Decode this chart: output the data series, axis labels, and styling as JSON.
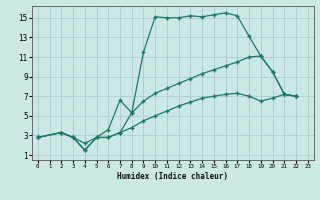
{
  "xlabel": "Humidex (Indice chaleur)",
  "bg_color": "#cce8e4",
  "grid_color": "#aacece",
  "line_color": "#1a7a6a",
  "xlim": [
    -0.5,
    23.5
  ],
  "ylim": [
    0.5,
    16.2
  ],
  "xticks": [
    0,
    1,
    2,
    3,
    4,
    5,
    6,
    7,
    8,
    9,
    10,
    11,
    12,
    13,
    14,
    15,
    16,
    17,
    18,
    19,
    20,
    21,
    22,
    23
  ],
  "yticks": [
    1,
    3,
    5,
    7,
    9,
    11,
    13,
    15
  ],
  "line1_x": [
    0,
    2,
    3,
    4,
    5,
    6,
    7,
    8,
    9,
    10,
    11,
    12,
    13,
    14,
    15,
    16,
    17,
    18,
    19,
    20,
    21,
    22
  ],
  "line1_y": [
    2.8,
    3.3,
    2.8,
    2.2,
    2.8,
    3.6,
    6.6,
    5.3,
    11.5,
    15.1,
    15.0,
    15.0,
    15.2,
    15.1,
    15.3,
    15.5,
    15.2,
    13.1,
    11.1,
    9.5,
    7.2,
    7.0
  ],
  "line2_x": [
    0,
    2,
    3,
    4,
    5,
    6,
    7,
    8,
    9,
    10,
    11,
    12,
    13,
    14,
    15,
    16,
    17,
    18,
    19,
    20,
    21,
    22
  ],
  "line2_y": [
    2.8,
    3.3,
    2.8,
    1.5,
    2.8,
    2.8,
    3.3,
    5.3,
    6.5,
    7.3,
    7.8,
    8.3,
    8.8,
    9.3,
    9.7,
    10.1,
    10.5,
    11.0,
    11.1,
    9.5,
    7.2,
    7.0
  ],
  "line3_x": [
    0,
    2,
    3,
    4,
    5,
    6,
    7,
    8,
    9,
    10,
    11,
    12,
    13,
    14,
    15,
    16,
    17,
    18,
    19,
    20,
    21,
    22
  ],
  "line3_y": [
    2.8,
    3.3,
    2.8,
    1.5,
    2.8,
    2.8,
    3.3,
    3.8,
    4.5,
    5.0,
    5.5,
    6.0,
    6.4,
    6.8,
    7.0,
    7.2,
    7.3,
    7.0,
    6.5,
    6.8,
    7.2,
    7.0
  ]
}
